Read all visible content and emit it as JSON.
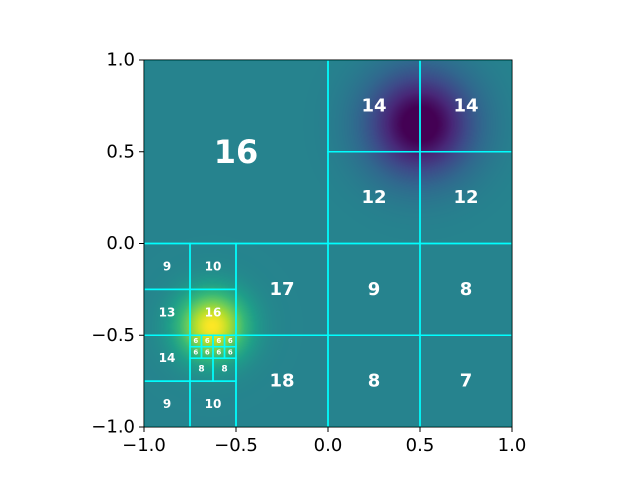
{
  "chart_data": {
    "type": "heatmap",
    "title": "",
    "xlabel": "",
    "ylabel": "",
    "xlim": [
      -1.0,
      1.0
    ],
    "ylim": [
      -1.0,
      1.0
    ],
    "x_ticks": [
      -1.0,
      -0.5,
      0.0,
      0.5,
      1.0
    ],
    "y_ticks": [
      -1.0,
      -0.5,
      0.0,
      0.5,
      1.0
    ],
    "x_tick_labels": [
      "−1.0",
      "−0.5",
      "0.0",
      "0.5",
      "1.0"
    ],
    "y_tick_labels": [
      "−1.0",
      "−0.5",
      "0.0",
      "0.5",
      "1.0"
    ],
    "grid": false,
    "colormap": "viridis",
    "background_field": {
      "base_value": 0.45,
      "peaks": [
        {
          "x": 0.5,
          "y": 0.65,
          "amplitude": -0.5,
          "sigma": 0.2
        },
        {
          "x": -0.63,
          "y": -0.45,
          "amplitude": 0.55,
          "sigma": 0.13
        }
      ]
    },
    "mesh_color": "#00ffff",
    "cells": [
      {
        "x": [
          -1.0,
          0.0
        ],
        "y": [
          0.0,
          1.0
        ],
        "label": "16"
      },
      {
        "x": [
          0.0,
          0.5
        ],
        "y": [
          0.5,
          1.0
        ],
        "label": "14"
      },
      {
        "x": [
          0.5,
          1.0
        ],
        "y": [
          0.5,
          1.0
        ],
        "label": "14"
      },
      {
        "x": [
          0.0,
          0.5
        ],
        "y": [
          0.0,
          0.5
        ],
        "label": "12"
      },
      {
        "x": [
          0.5,
          1.0
        ],
        "y": [
          0.0,
          0.5
        ],
        "label": "12"
      },
      {
        "x": [
          -0.5,
          0.0
        ],
        "y": [
          -0.5,
          0.0
        ],
        "label": "17"
      },
      {
        "x": [
          0.0,
          0.5
        ],
        "y": [
          -0.5,
          0.0
        ],
        "label": "9"
      },
      {
        "x": [
          0.5,
          1.0
        ],
        "y": [
          -0.5,
          0.0
        ],
        "label": "8"
      },
      {
        "x": [
          -0.5,
          0.0
        ],
        "y": [
          -1.0,
          -0.5
        ],
        "label": "18"
      },
      {
        "x": [
          0.0,
          0.5
        ],
        "y": [
          -1.0,
          -0.5
        ],
        "label": "8"
      },
      {
        "x": [
          0.5,
          1.0
        ],
        "y": [
          -1.0,
          -0.5
        ],
        "label": "7"
      },
      {
        "x": [
          -1.0,
          -0.75
        ],
        "y": [
          -0.25,
          0.0
        ],
        "label": "9"
      },
      {
        "x": [
          -0.75,
          -0.5
        ],
        "y": [
          -0.25,
          0.0
        ],
        "label": "10"
      },
      {
        "x": [
          -1.0,
          -0.75
        ],
        "y": [
          -0.5,
          -0.25
        ],
        "label": "13"
      },
      {
        "x": [
          -0.75,
          -0.5
        ],
        "y": [
          -0.5,
          -0.25
        ],
        "label": "16"
      },
      {
        "x": [
          -1.0,
          -0.75
        ],
        "y": [
          -0.75,
          -0.5
        ],
        "label": "14"
      },
      {
        "x": [
          -1.0,
          -0.75
        ],
        "y": [
          -1.0,
          -0.75
        ],
        "label": "9"
      },
      {
        "x": [
          -0.75,
          -0.5
        ],
        "y": [
          -1.0,
          -0.75
        ],
        "label": "10"
      },
      {
        "x": [
          -0.75,
          -0.625
        ],
        "y": [
          -0.75,
          -0.625
        ],
        "label": "8"
      },
      {
        "x": [
          -0.625,
          -0.5
        ],
        "y": [
          -0.75,
          -0.625
        ],
        "label": "8"
      },
      {
        "x": [
          -0.75,
          -0.6875
        ],
        "y": [
          -0.5625,
          -0.5
        ],
        "label": "6"
      },
      {
        "x": [
          -0.6875,
          -0.625
        ],
        "y": [
          -0.5625,
          -0.5
        ],
        "label": "6"
      },
      {
        "x": [
          -0.625,
          -0.5625
        ],
        "y": [
          -0.5625,
          -0.5
        ],
        "label": "6"
      },
      {
        "x": [
          -0.5625,
          -0.5
        ],
        "y": [
          -0.5625,
          -0.5
        ],
        "label": "6"
      },
      {
        "x": [
          -0.75,
          -0.6875
        ],
        "y": [
          -0.625,
          -0.5625
        ],
        "label": "6"
      },
      {
        "x": [
          -0.6875,
          -0.625
        ],
        "y": [
          -0.625,
          -0.5625
        ],
        "label": "6"
      },
      {
        "x": [
          -0.625,
          -0.5625
        ],
        "y": [
          -0.625,
          -0.5625
        ],
        "label": "6"
      },
      {
        "x": [
          -0.5625,
          -0.5
        ],
        "y": [
          -0.625,
          -0.5625
        ],
        "label": "6"
      }
    ]
  }
}
